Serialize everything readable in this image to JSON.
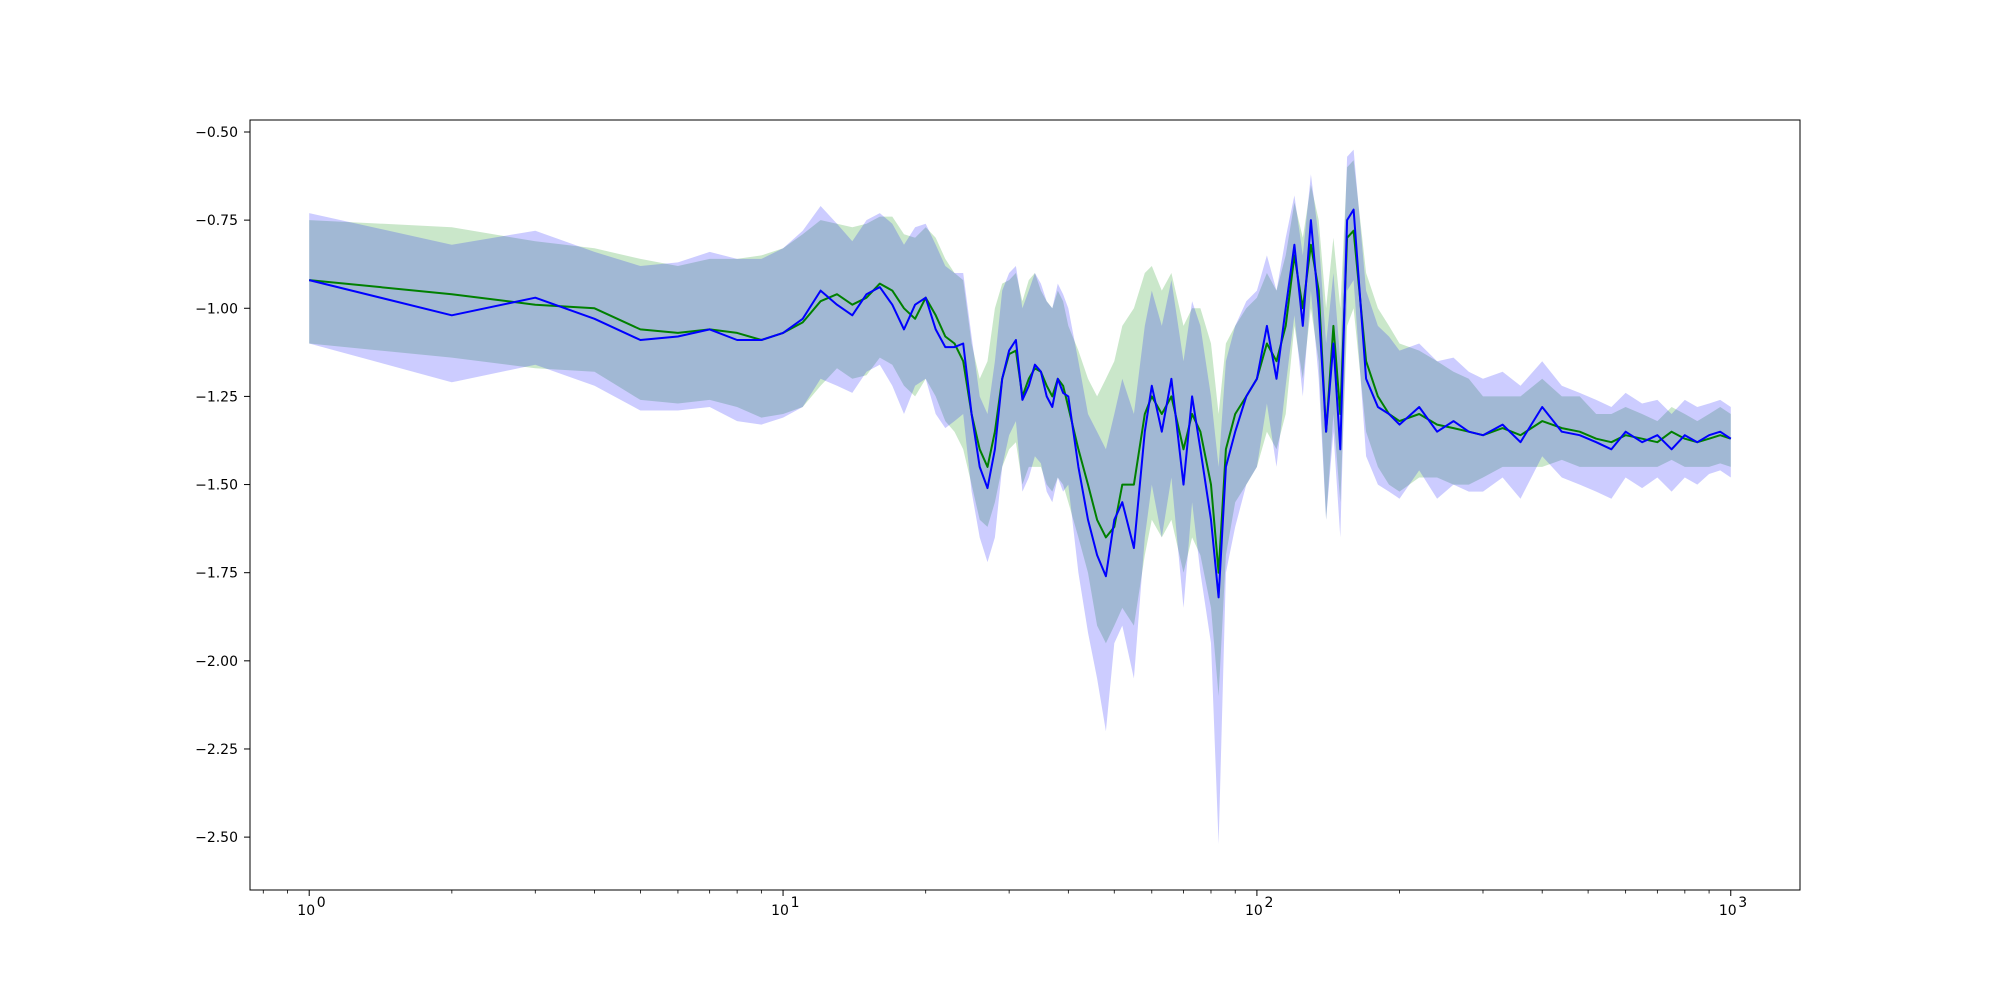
{
  "chart_data": {
    "type": "line",
    "title": "",
    "xlabel": "",
    "ylabel": "",
    "x_scale": "log",
    "xlim": [
      0.75,
      1400
    ],
    "ylim": [
      -2.65,
      -0.466
    ],
    "grid": false,
    "x_ticks": [
      {
        "value": 1,
        "base": "10",
        "exp": "0"
      },
      {
        "value": 10,
        "base": "10",
        "exp": "1"
      },
      {
        "value": 100,
        "base": "10",
        "exp": "2"
      },
      {
        "value": 1000,
        "base": "10",
        "exp": "3"
      }
    ],
    "y_ticks": [
      {
        "value": -0.5,
        "label": "−0.50"
      },
      {
        "value": -0.75,
        "label": "−0.75"
      },
      {
        "value": -1.0,
        "label": "−1.00"
      },
      {
        "value": -1.25,
        "label": "−1.25"
      },
      {
        "value": -1.5,
        "label": "−1.50"
      },
      {
        "value": -1.75,
        "label": "−1.75"
      },
      {
        "value": -2.0,
        "label": "−2.00"
      },
      {
        "value": -2.25,
        "label": "−2.25"
      },
      {
        "value": -2.5,
        "label": "−2.50"
      }
    ],
    "series": [
      {
        "color": "#008000",
        "band_color": "#2ca02c",
        "band_opacity": 0.25,
        "x": [
          1,
          2,
          3,
          4,
          5,
          6,
          7,
          8,
          9,
          10,
          11,
          12,
          13,
          14,
          15,
          16,
          17,
          18,
          19,
          20,
          21,
          22,
          23,
          24,
          25,
          26,
          27,
          28,
          29,
          30,
          31,
          32,
          33,
          34,
          35,
          36,
          37,
          38,
          39,
          40,
          42,
          44,
          46,
          48,
          50,
          52,
          55,
          58,
          60,
          63,
          66,
          70,
          73,
          76,
          80,
          83,
          86,
          90,
          95,
          100,
          105,
          110,
          115,
          120,
          125,
          130,
          135,
          140,
          145,
          150,
          155,
          160,
          170,
          180,
          190,
          200,
          220,
          240,
          260,
          280,
          300,
          330,
          360,
          400,
          440,
          480,
          520,
          560,
          600,
          650,
          700,
          750,
          800,
          850,
          900,
          950,
          1000
        ],
        "y": [
          -0.92,
          -0.96,
          -0.99,
          -1.0,
          -1.06,
          -1.07,
          -1.06,
          -1.07,
          -1.09,
          -1.07,
          -1.04,
          -0.98,
          -0.96,
          -0.99,
          -0.97,
          -0.93,
          -0.95,
          -1.0,
          -1.03,
          -0.97,
          -1.02,
          -1.08,
          -1.1,
          -1.15,
          -1.3,
          -1.4,
          -1.45,
          -1.35,
          -1.2,
          -1.13,
          -1.12,
          -1.25,
          -1.2,
          -1.17,
          -1.18,
          -1.22,
          -1.25,
          -1.2,
          -1.22,
          -1.28,
          -1.4,
          -1.5,
          -1.6,
          -1.65,
          -1.62,
          -1.5,
          -1.5,
          -1.3,
          -1.25,
          -1.3,
          -1.25,
          -1.4,
          -1.3,
          -1.35,
          -1.5,
          -1.75,
          -1.4,
          -1.3,
          -1.25,
          -1.2,
          -1.1,
          -1.15,
          -1.05,
          -0.85,
          -1.0,
          -0.82,
          -0.95,
          -1.35,
          -1.05,
          -1.3,
          -0.8,
          -0.78,
          -1.15,
          -1.25,
          -1.3,
          -1.32,
          -1.3,
          -1.33,
          -1.34,
          -1.35,
          -1.36,
          -1.34,
          -1.36,
          -1.32,
          -1.34,
          -1.35,
          -1.37,
          -1.38,
          -1.36,
          -1.37,
          -1.38,
          -1.35,
          -1.37,
          -1.38,
          -1.37,
          -1.36,
          -1.37
        ],
        "upper": [
          -0.75,
          -0.77,
          -0.81,
          -0.83,
          -0.86,
          -0.88,
          -0.86,
          -0.86,
          -0.85,
          -0.83,
          -0.79,
          -0.75,
          -0.76,
          -0.77,
          -0.76,
          -0.74,
          -0.74,
          -0.79,
          -0.8,
          -0.77,
          -0.8,
          -0.86,
          -0.9,
          -0.92,
          -1.1,
          -1.2,
          -1.15,
          -1.0,
          -0.93,
          -0.92,
          -0.9,
          -0.98,
          -0.92,
          -0.9,
          -0.95,
          -0.98,
          -1.0,
          -0.95,
          -0.98,
          -1.05,
          -1.12,
          -1.2,
          -1.25,
          -1.2,
          -1.15,
          -1.05,
          -1.0,
          -0.9,
          -0.88,
          -0.95,
          -0.9,
          -1.05,
          -1.0,
          -1.0,
          -1.1,
          -1.3,
          -1.1,
          -1.05,
          -1.0,
          -0.97,
          -0.9,
          -0.95,
          -0.85,
          -0.7,
          -0.8,
          -0.65,
          -0.75,
          -1.0,
          -0.8,
          -1.0,
          -0.6,
          -0.58,
          -0.9,
          -1.0,
          -1.05,
          -1.1,
          -1.12,
          -1.15,
          -1.18,
          -1.2,
          -1.25,
          -1.25,
          -1.25,
          -1.2,
          -1.25,
          -1.25,
          -1.3,
          -1.3,
          -1.28,
          -1.3,
          -1.32,
          -1.28,
          -1.3,
          -1.32,
          -1.3,
          -1.28,
          -1.3
        ],
        "lower": [
          -1.1,
          -1.14,
          -1.17,
          -1.18,
          -1.26,
          -1.27,
          -1.26,
          -1.28,
          -1.31,
          -1.3,
          -1.28,
          -1.22,
          -1.17,
          -1.2,
          -1.19,
          -1.14,
          -1.16,
          -1.22,
          -1.25,
          -1.2,
          -1.25,
          -1.32,
          -1.35,
          -1.4,
          -1.5,
          -1.6,
          -1.62,
          -1.55,
          -1.45,
          -1.4,
          -1.38,
          -1.5,
          -1.45,
          -1.45,
          -1.45,
          -1.5,
          -1.52,
          -1.48,
          -1.5,
          -1.55,
          -1.65,
          -1.75,
          -1.9,
          -1.95,
          -1.9,
          -1.85,
          -1.9,
          -1.7,
          -1.6,
          -1.65,
          -1.6,
          -1.75,
          -1.65,
          -1.7,
          -1.85,
          -2.1,
          -1.7,
          -1.55,
          -1.5,
          -1.45,
          -1.35,
          -1.4,
          -1.3,
          -1.05,
          -1.2,
          -1.0,
          -1.15,
          -1.6,
          -1.3,
          -1.55,
          -1.05,
          -1.0,
          -1.35,
          -1.45,
          -1.5,
          -1.52,
          -1.48,
          -1.48,
          -1.5,
          -1.5,
          -1.48,
          -1.45,
          -1.45,
          -1.45,
          -1.43,
          -1.45,
          -1.45,
          -1.45,
          -1.45,
          -1.45,
          -1.45,
          -1.43,
          -1.45,
          -1.45,
          -1.45,
          -1.44,
          -1.45
        ]
      },
      {
        "color": "#0000ff",
        "band_color": "#0000ff",
        "band_opacity": 0.2,
        "x": [
          1,
          2,
          3,
          4,
          5,
          6,
          7,
          8,
          9,
          10,
          11,
          12,
          13,
          14,
          15,
          16,
          17,
          18,
          19,
          20,
          21,
          22,
          23,
          24,
          25,
          26,
          27,
          28,
          29,
          30,
          31,
          32,
          33,
          34,
          35,
          36,
          37,
          38,
          39,
          40,
          42,
          44,
          46,
          48,
          50,
          52,
          55,
          58,
          60,
          63,
          66,
          70,
          73,
          76,
          80,
          83,
          86,
          90,
          95,
          100,
          105,
          110,
          115,
          120,
          125,
          130,
          135,
          140,
          145,
          150,
          155,
          160,
          170,
          180,
          190,
          200,
          220,
          240,
          260,
          280,
          300,
          330,
          360,
          400,
          440,
          480,
          520,
          560,
          600,
          650,
          700,
          750,
          800,
          850,
          900,
          950,
          1000
        ],
        "y": [
          -0.92,
          -1.02,
          -0.97,
          -1.03,
          -1.09,
          -1.08,
          -1.06,
          -1.09,
          -1.09,
          -1.07,
          -1.03,
          -0.95,
          -0.99,
          -1.02,
          -0.96,
          -0.94,
          -0.99,
          -1.06,
          -0.99,
          -0.97,
          -1.06,
          -1.11,
          -1.11,
          -1.1,
          -1.3,
          -1.45,
          -1.51,
          -1.4,
          -1.2,
          -1.12,
          -1.09,
          -1.26,
          -1.22,
          -1.16,
          -1.18,
          -1.25,
          -1.28,
          -1.2,
          -1.24,
          -1.25,
          -1.45,
          -1.6,
          -1.7,
          -1.76,
          -1.6,
          -1.55,
          -1.68,
          -1.35,
          -1.22,
          -1.35,
          -1.2,
          -1.5,
          -1.25,
          -1.4,
          -1.6,
          -1.82,
          -1.45,
          -1.35,
          -1.25,
          -1.2,
          -1.05,
          -1.2,
          -1.0,
          -0.82,
          -1.05,
          -0.75,
          -1.0,
          -1.35,
          -1.1,
          -1.4,
          -0.75,
          -0.72,
          -1.2,
          -1.28,
          -1.3,
          -1.33,
          -1.28,
          -1.35,
          -1.32,
          -1.35,
          -1.36,
          -1.33,
          -1.38,
          -1.28,
          -1.35,
          -1.36,
          -1.38,
          -1.4,
          -1.35,
          -1.38,
          -1.36,
          -1.4,
          -1.36,
          -1.38,
          -1.36,
          -1.35,
          -1.37
        ],
        "upper": [
          -0.73,
          -0.82,
          -0.78,
          -0.84,
          -0.88,
          -0.87,
          -0.84,
          -0.86,
          -0.86,
          -0.83,
          -0.78,
          -0.71,
          -0.76,
          -0.81,
          -0.75,
          -0.73,
          -0.76,
          -0.82,
          -0.77,
          -0.76,
          -0.82,
          -0.88,
          -0.9,
          -0.9,
          -1.08,
          -1.25,
          -1.3,
          -1.15,
          -0.95,
          -0.9,
          -0.88,
          -1.0,
          -0.95,
          -0.9,
          -0.93,
          -0.98,
          -1.0,
          -0.93,
          -0.96,
          -1.0,
          -1.15,
          -1.3,
          -1.35,
          -1.4,
          -1.3,
          -1.2,
          -1.3,
          -1.05,
          -0.95,
          -1.05,
          -0.92,
          -1.15,
          -0.98,
          -1.05,
          -1.25,
          -1.45,
          -1.15,
          -1.05,
          -0.98,
          -0.95,
          -0.85,
          -0.95,
          -0.8,
          -0.68,
          -0.85,
          -0.62,
          -0.8,
          -1.1,
          -0.9,
          -1.15,
          -0.57,
          -0.55,
          -0.95,
          -1.05,
          -1.08,
          -1.12,
          -1.1,
          -1.15,
          -1.14,
          -1.18,
          -1.2,
          -1.18,
          -1.22,
          -1.15,
          -1.22,
          -1.24,
          -1.26,
          -1.28,
          -1.24,
          -1.27,
          -1.26,
          -1.3,
          -1.26,
          -1.28,
          -1.27,
          -1.26,
          -1.28
        ],
        "lower": [
          -1.1,
          -1.21,
          -1.16,
          -1.22,
          -1.29,
          -1.29,
          -1.28,
          -1.32,
          -1.33,
          -1.31,
          -1.28,
          -1.2,
          -1.22,
          -1.24,
          -1.18,
          -1.16,
          -1.22,
          -1.3,
          -1.22,
          -1.2,
          -1.3,
          -1.34,
          -1.32,
          -1.3,
          -1.52,
          -1.65,
          -1.72,
          -1.65,
          -1.45,
          -1.36,
          -1.32,
          -1.52,
          -1.48,
          -1.42,
          -1.44,
          -1.52,
          -1.55,
          -1.48,
          -1.52,
          -1.5,
          -1.75,
          -1.92,
          -2.05,
          -2.2,
          -1.95,
          -1.9,
          -2.05,
          -1.65,
          -1.5,
          -1.65,
          -1.48,
          -1.85,
          -1.55,
          -1.75,
          -1.95,
          -2.52,
          -1.75,
          -1.62,
          -1.5,
          -1.45,
          -1.27,
          -1.45,
          -1.22,
          -1.02,
          -1.25,
          -0.95,
          -1.2,
          -1.6,
          -1.35,
          -1.65,
          -0.95,
          -0.92,
          -1.42,
          -1.5,
          -1.52,
          -1.54,
          -1.46,
          -1.54,
          -1.5,
          -1.52,
          -1.52,
          -1.48,
          -1.54,
          -1.42,
          -1.48,
          -1.5,
          -1.52,
          -1.54,
          -1.48,
          -1.51,
          -1.48,
          -1.52,
          -1.48,
          -1.5,
          -1.47,
          -1.46,
          -1.48
        ]
      }
    ]
  }
}
